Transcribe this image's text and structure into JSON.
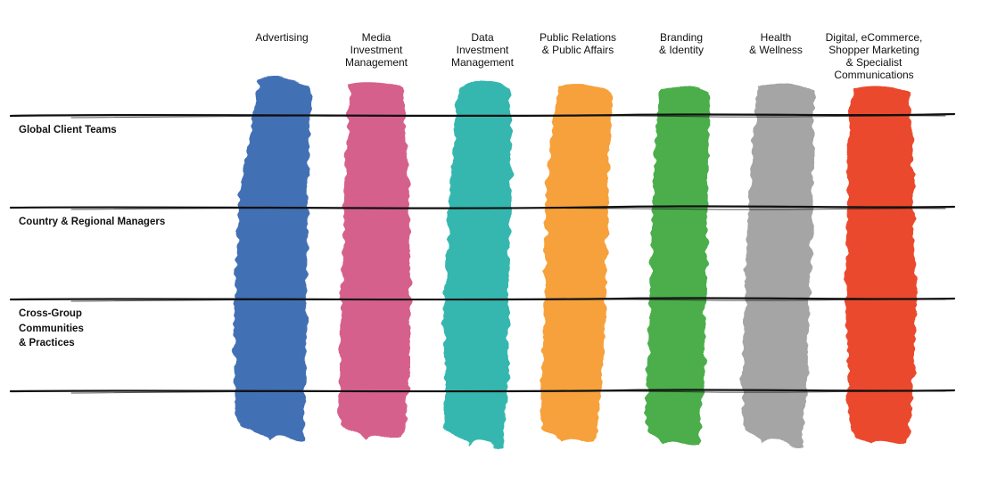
{
  "columns": [
    {
      "label": "Advertising",
      "color": "#4370b4"
    },
    {
      "label": "Media\nInvestment\nManagement",
      "color": "#d6608c"
    },
    {
      "label": "Data\nInvestment\nManagement",
      "color": "#35b7b0"
    },
    {
      "label": "Public Relations\n& Public Affairs",
      "color": "#f6a13a"
    },
    {
      "label": "Branding\n& Identity",
      "color": "#4cae4c"
    },
    {
      "label": "Health\n& Wellness",
      "color": "#a5a5a5"
    },
    {
      "label": "Digital, eCommerce,\nShopper Marketing\n& Specialist\nCommunications",
      "color": "#eb4a2d"
    }
  ],
  "rows": [
    {
      "label": "Global Client Teams"
    },
    {
      "label": "Country & Regional Managers"
    },
    {
      "label": "Cross-Group\nCommunities\n& Practices"
    }
  ]
}
